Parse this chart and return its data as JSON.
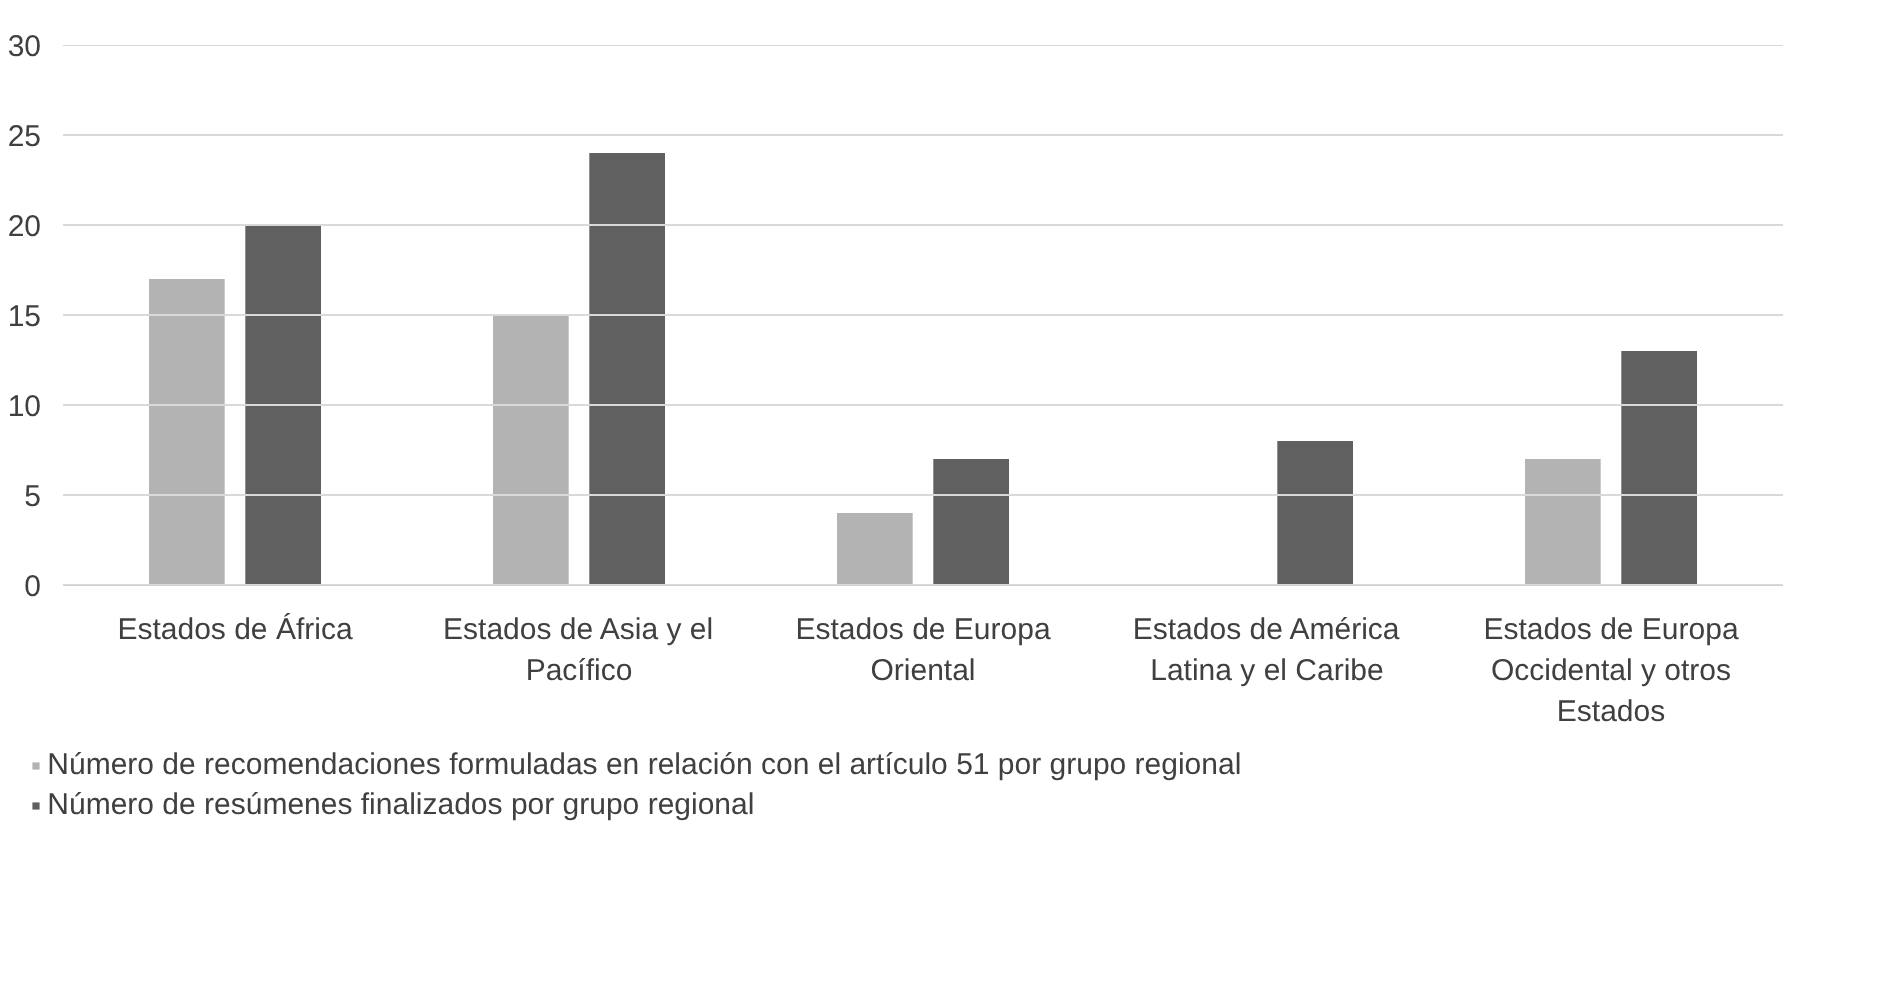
{
  "chart_data": {
    "type": "bar",
    "categories": [
      "Estados de África",
      "Estados de Asia y el Pacífico",
      "Estados de Europa Oriental",
      "Estados de América Latina y el Caribe",
      "Estados de Europa Occidental y otros Estados"
    ],
    "series": [
      {
        "name": "Número de recomendaciones formuladas en relación con el artículo 51 por grupo regional",
        "color": "#b3b3b3",
        "values": [
          17,
          15,
          4,
          0,
          7
        ]
      },
      {
        "name": "Número de resúmenes finalizados por grupo regional",
        "color": "#606060",
        "values": [
          20,
          24,
          7,
          8,
          13
        ]
      }
    ],
    "ylim": [
      0,
      30
    ],
    "yticks": [
      0,
      5,
      10,
      15,
      20,
      25,
      30
    ],
    "grid": "y",
    "legend": "bottom"
  }
}
